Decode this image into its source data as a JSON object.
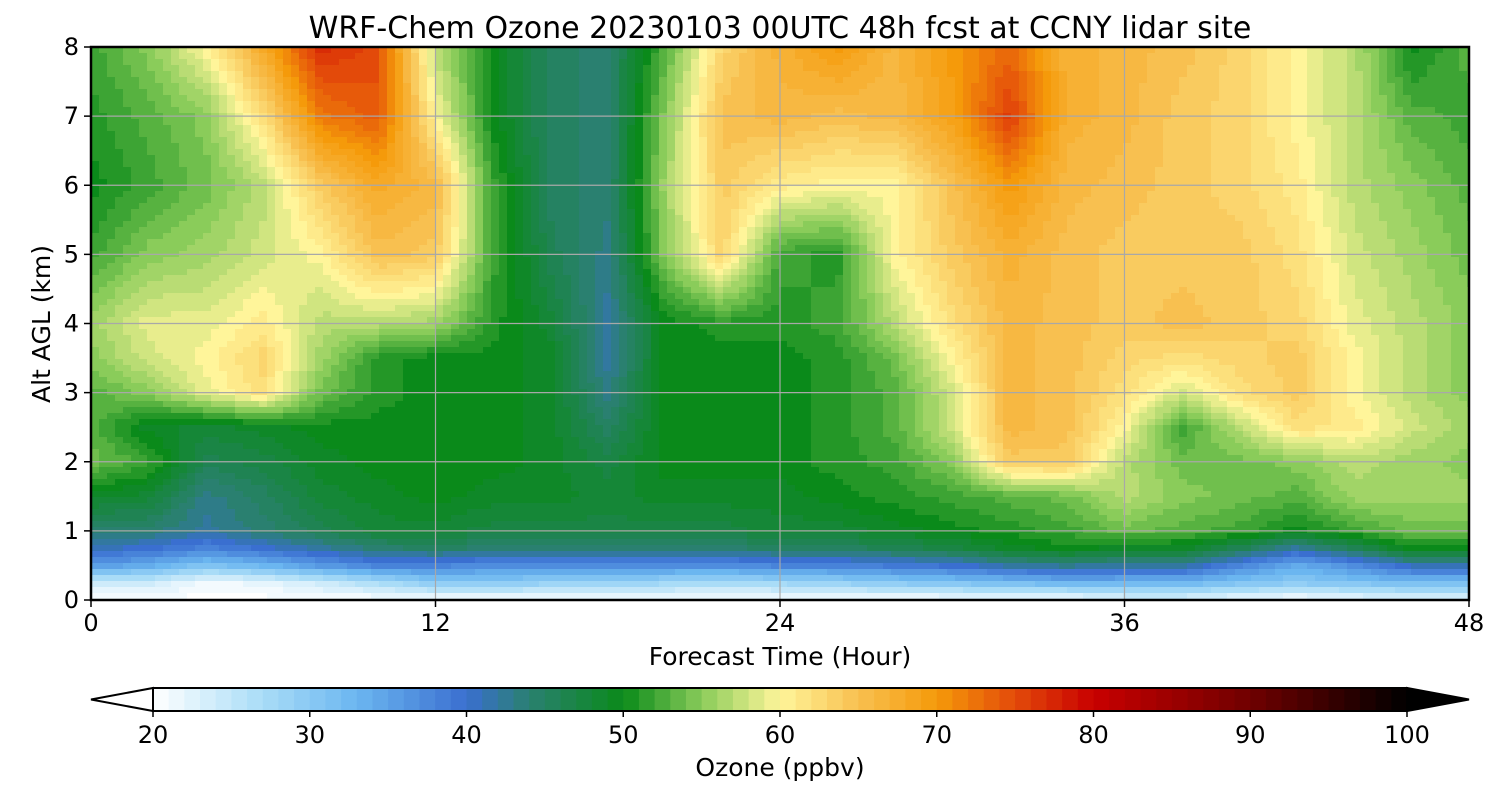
{
  "chart_data": {
    "type": "heatmap",
    "title": "WRF-Chem Ozone  20230103 00UTC 48h fcst at CCNY lidar site",
    "xlabel": "Forecast Time (Hour)",
    "ylabel": "Alt AGL (km)",
    "xlim": [
      0,
      48
    ],
    "ylim": [
      0,
      8
    ],
    "xticks": [
      0,
      12,
      24,
      36,
      48
    ],
    "yticks": [
      0,
      1,
      2,
      3,
      4,
      5,
      6,
      7,
      8
    ],
    "grid": true,
    "colorbar": {
      "label": "Ozone  (ppbv)",
      "range": [
        20,
        100
      ],
      "ticks": [
        20,
        30,
        40,
        50,
        60,
        70,
        80,
        90,
        100
      ],
      "extend": "both",
      "stops": [
        {
          "v": 20,
          "c": "#ffffff"
        },
        {
          "v": 27,
          "c": "#a9dcf7"
        },
        {
          "v": 33,
          "c": "#6bb6f0"
        },
        {
          "v": 40,
          "c": "#3a6fd0"
        },
        {
          "v": 44,
          "c": "#2a8070"
        },
        {
          "v": 50,
          "c": "#0a8a1a"
        },
        {
          "v": 55,
          "c": "#8acc5a"
        },
        {
          "v": 60,
          "c": "#fff59a"
        },
        {
          "v": 65,
          "c": "#f8c050"
        },
        {
          "v": 70,
          "c": "#f59a0a"
        },
        {
          "v": 75,
          "c": "#e34a0a"
        },
        {
          "v": 80,
          "c": "#c80000"
        },
        {
          "v": 90,
          "c": "#700000"
        },
        {
          "v": 100,
          "c": "#000000"
        }
      ]
    },
    "x": [
      0,
      2,
      4,
      6,
      8,
      10,
      12,
      14,
      16,
      18,
      20,
      22,
      24,
      26,
      28,
      30,
      32,
      34,
      36,
      38,
      40,
      42,
      44,
      46,
      48
    ],
    "y": [
      0,
      0.25,
      0.5,
      0.75,
      1,
      1.5,
      2,
      2.5,
      3,
      3.5,
      4,
      5,
      6,
      7,
      8
    ],
    "z": [
      [
        20,
        20,
        20,
        20,
        20,
        20,
        20,
        20,
        20,
        20,
        20,
        20,
        20,
        20,
        20,
        20,
        20,
        20,
        22,
        22,
        21,
        20,
        21,
        22,
        22
      ],
      [
        24,
        24,
        21,
        22,
        24,
        27,
        30,
        30,
        29,
        29,
        28,
        27,
        28,
        29,
        30,
        31,
        32,
        33,
        33,
        33,
        31,
        30,
        31,
        32,
        32
      ],
      [
        36,
        34,
        31,
        33,
        36,
        38,
        38,
        37,
        37,
        37,
        37,
        37,
        38,
        38,
        39,
        40,
        42,
        43,
        42,
        42,
        38,
        34,
        37,
        41,
        41
      ],
      [
        41,
        40,
        38,
        40,
        42,
        44,
        45,
        44,
        44,
        44,
        44,
        44,
        45,
        45,
        46,
        47,
        49,
        50,
        49,
        49,
        46,
        42,
        46,
        50,
        50
      ],
      [
        44,
        44,
        42,
        44,
        46,
        48,
        48,
        47,
        47,
        47,
        47,
        47,
        48,
        48,
        49,
        50,
        51,
        52,
        54,
        53,
        52,
        50,
        52,
        54,
        54
      ],
      [
        49,
        48,
        43,
        45,
        48,
        49,
        50,
        49,
        49,
        48,
        49,
        49,
        49,
        50,
        51,
        52,
        53,
        54,
        57,
        55,
        54,
        53,
        56,
        56,
        56
      ],
      [
        54,
        52,
        46,
        47,
        49,
        50,
        50,
        50,
        49,
        47,
        50,
        50,
        50,
        51,
        52,
        55,
        64,
        64,
        57,
        54,
        54,
        55,
        57,
        56,
        55
      ],
      [
        53,
        49,
        48,
        49,
        50,
        50,
        50,
        50,
        49,
        45,
        50,
        50,
        50,
        51,
        53,
        58,
        66,
        65,
        60,
        52,
        57,
        62,
        61,
        58,
        56
      ],
      [
        53,
        55,
        59,
        62,
        54,
        51,
        50,
        50,
        49,
        43,
        50,
        50,
        50,
        51,
        53,
        58,
        66,
        65,
        62,
        58,
        62,
        64,
        60,
        57,
        55
      ],
      [
        55,
        58,
        60,
        63,
        56,
        51,
        50,
        50,
        49,
        42,
        50,
        50,
        50,
        51,
        54,
        60,
        66,
        65,
        63,
        62,
        63,
        64,
        60,
        57,
        55
      ],
      [
        56,
        59,
        59,
        61,
        57,
        57,
        56,
        51,
        48,
        42,
        50,
        51,
        51,
        52,
        57,
        62,
        66,
        65,
        64,
        65,
        64,
        63,
        59,
        57,
        55
      ],
      [
        52,
        55,
        56,
        58,
        60,
        65,
        64,
        52,
        46,
        43,
        55,
        63,
        52,
        51,
        60,
        64,
        67,
        65,
        64,
        64,
        64,
        62,
        58,
        56,
        54
      ],
      [
        50,
        52,
        54,
        57,
        64,
        68,
        66,
        52,
        45,
        44,
        56,
        64,
        61,
        60,
        60,
        65,
        70,
        66,
        65,
        64,
        63,
        61,
        57,
        55,
        53
      ],
      [
        51,
        53,
        55,
        62,
        72,
        74,
        60,
        50,
        45,
        44,
        55,
        65,
        66,
        65,
        66,
        69,
        76,
        67,
        66,
        64,
        63,
        60,
        57,
        53,
        52
      ],
      [
        52,
        55,
        60,
        68,
        77,
        75,
        57,
        50,
        45,
        44,
        53,
        63,
        67,
        70,
        66,
        70,
        73,
        67,
        66,
        65,
        63,
        60,
        57,
        50,
        53
      ]
    ]
  }
}
